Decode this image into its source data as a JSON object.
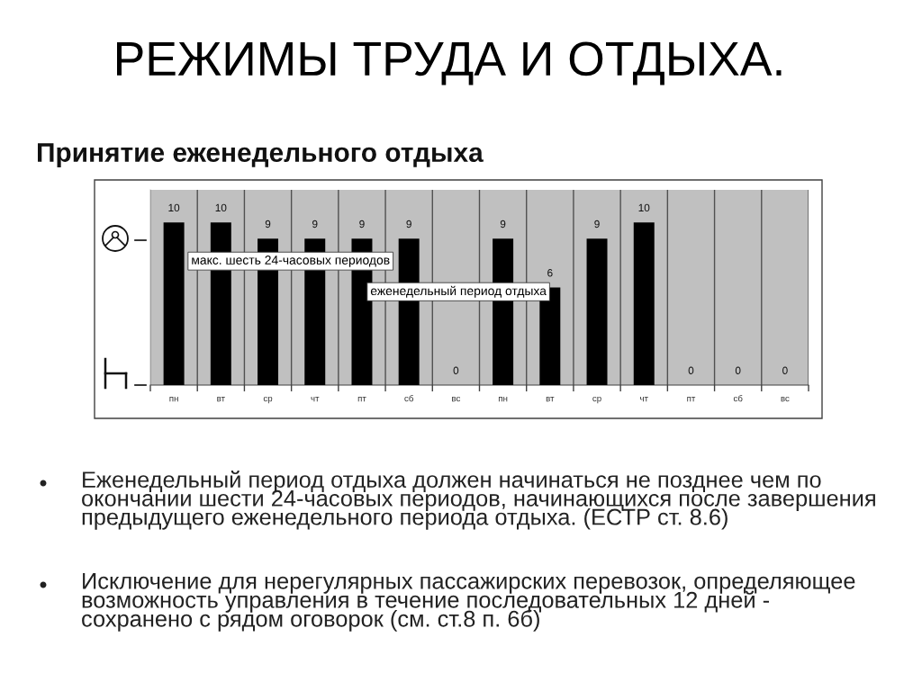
{
  "chart_data": {
    "type": "bar",
    "title": "РЕЖИМЫ ТРУДА И ОТДЫХА.",
    "subtitle": "Принятие еженедельного отдыха",
    "categories": [
      "пн",
      "вт",
      "ср",
      "чт",
      "пт",
      "сб",
      "вс",
      "пн",
      "вт",
      "ср",
      "чт",
      "пт",
      "сб",
      "вс"
    ],
    "values": [
      10,
      10,
      9,
      9,
      9,
      9,
      0,
      9,
      6,
      9,
      10,
      0,
      0,
      0
    ],
    "color": "#000000",
    "ylim": [
      0,
      12
    ],
    "tick_labels": "x",
    "grid": "x",
    "data_labels": true,
    "annotations": [
      "макс. шесть 24-часовых периодов",
      "еженедельный период отдыха",
      "Еженедельный период отдыха должен начинаться не позднее чем по\nокончании шести 24-часовых периодов, начинающихся после завершения\nпредыдущего еженедельного периода отдыха. (ЕСТР ст. 8.6)",
      "Исключение для нерегулярных пассажирских перевозок, определяющее\nвозможность управления в течение последовательных 12 дней -\nсохранено с рядом оговорок (см. ст.8 п. 6б)"
    ]
  }
}
